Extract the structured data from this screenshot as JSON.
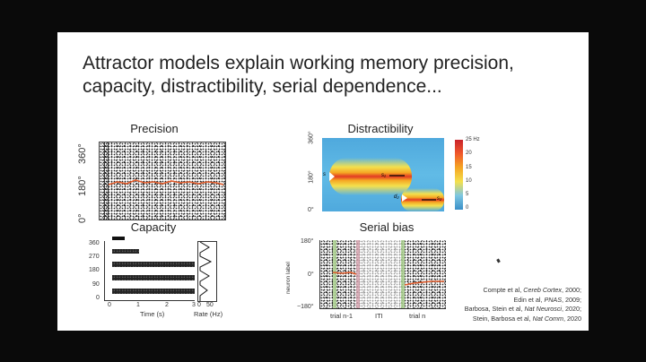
{
  "slide": {
    "title_line1": "Attractor models explain working memory precision,",
    "title_line2": "capacity, distractibility, serial dependence...",
    "precision": {
      "label": "Precision",
      "y_ticks": [
        "0°",
        "180°",
        "360°"
      ]
    },
    "capacity": {
      "label": "Capacity",
      "y_ticks": [
        "360",
        "270",
        "180",
        "90",
        "0"
      ],
      "x_ticks": [
        "0",
        "1",
        "2",
        "3"
      ],
      "rate_ticks": [
        "0",
        "50"
      ],
      "xlabel": "Time (s)",
      "rate_label": "Rate (Hz)"
    },
    "distractibility": {
      "label": "Distractibility",
      "y_ticks": [
        "360°",
        "180°",
        "0°"
      ],
      "colorbar_ticks": [
        "25 Hz",
        "20",
        "15",
        "10",
        "5",
        "0"
      ],
      "marker_s": "s",
      "marker_d": "d",
      "marker_s1": "s₁",
      "marker_s2": "s₂",
      "marker_d2": "d₂",
      "colors": {
        "hot": "#e23a24",
        "mid": "#f5a623",
        "warm": "#f4e04d",
        "cool": "#5fb7e5"
      }
    },
    "serial_bias": {
      "label": "Serial bias",
      "y_ticks": [
        "180°",
        "0°",
        "−180°"
      ],
      "ylabel": "neuron label",
      "x_labels": [
        "trial n-1",
        "ITI",
        "trial n"
      ]
    },
    "references": [
      {
        "pre": "Compte et al, ",
        "journal": "Cereb Cortex",
        "post": ", 2000;"
      },
      {
        "pre": "Edin et al, ",
        "journal": "PNAS",
        "post": ", 2009;"
      },
      {
        "pre": "Barbosa, Stein et al, ",
        "journal": "Nat Neurosci",
        "post": ", 2020;"
      },
      {
        "pre": "Stein, Barbosa et al, ",
        "journal": "Nat Comm",
        "post": ", 2020"
      }
    ]
  }
}
